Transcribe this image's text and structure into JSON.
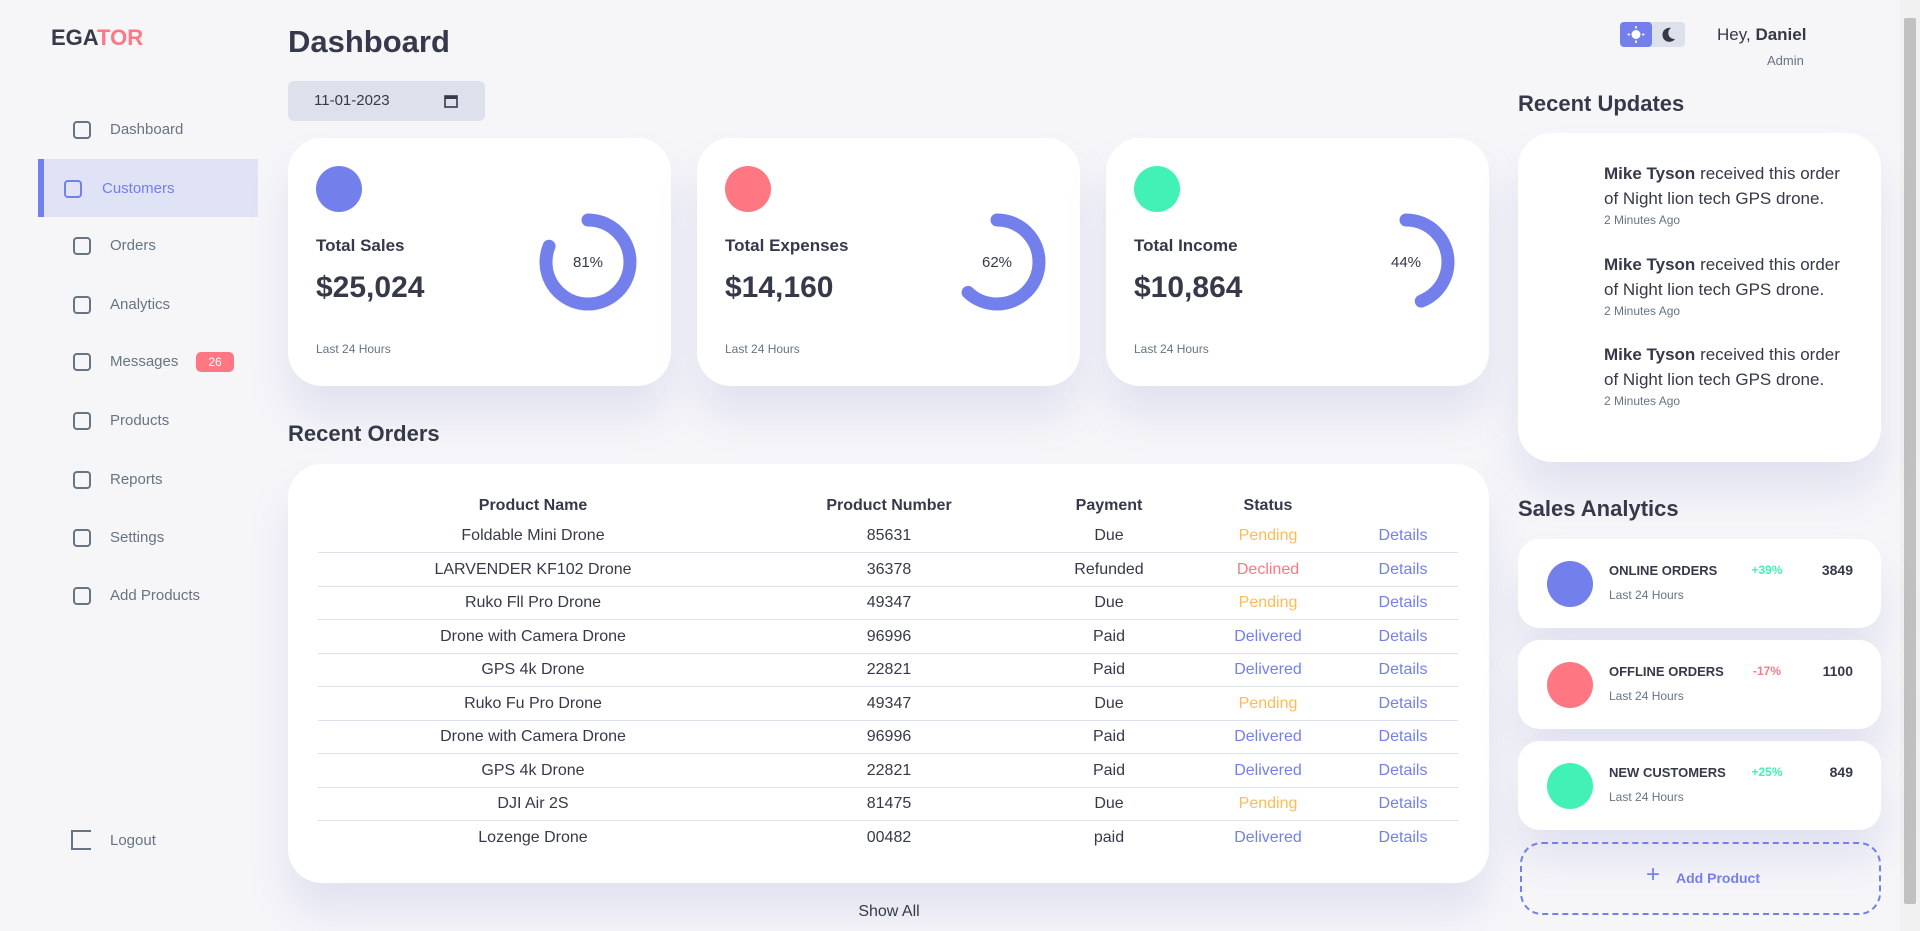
{
  "brand": {
    "part1": "EGA",
    "part2": "TOR"
  },
  "sidebar": {
    "active_item": 1,
    "menu": [
      {
        "label": "Dashboard"
      },
      {
        "label": "Customers"
      },
      {
        "label": "Orders"
      },
      {
        "label": "Analytics"
      },
      {
        "label": "Messages",
        "badge": "26"
      },
      {
        "label": "Products"
      },
      {
        "label": "Reports"
      },
      {
        "label": "Settings"
      },
      {
        "label": "Add Products"
      }
    ],
    "logout": "Logout"
  },
  "header": {
    "title": "Dashboard",
    "date": "11-01-2023",
    "greeting": "Hey,",
    "user": "Daniel",
    "role": "Admin"
  },
  "cards": [
    {
      "title": "Total Sales",
      "value": "$25,024",
      "note": "Last 24 Hours",
      "progress": {
        "value": 81,
        "label": "81%"
      },
      "icon_color": "#7380ec"
    },
    {
      "title": "Total Expenses",
      "value": "$14,160",
      "note": "Last 24 Hours",
      "progress": {
        "value": 62,
        "label": "62%"
      },
      "icon_color": "#ff7782"
    },
    {
      "title": "Total Income",
      "value": "$10,864",
      "note": "Last 24 Hours",
      "progress": {
        "value": 44,
        "label": "44%"
      },
      "icon_color": "#41f1b6"
    }
  ],
  "orders": {
    "title": "Recent Orders",
    "headers": [
      "Product Name",
      "Product Number",
      "Payment",
      "Status"
    ],
    "rows": [
      [
        "Foldable Mini Drone",
        "85631",
        "Due",
        "Pending",
        "Details"
      ],
      [
        "LARVENDER KF102 Drone",
        "36378",
        "Refunded",
        "Declined",
        "Details"
      ],
      [
        "Ruko Fll Pro Drone",
        "49347",
        "Due",
        "Pending",
        "Details"
      ],
      [
        "Drone with Camera Drone",
        "96996",
        "Paid",
        "Delivered",
        "Details"
      ],
      [
        "GPS 4k Drone",
        "22821",
        "Paid",
        "Delivered",
        "Details"
      ],
      [
        "Ruko Fu Pro Drone",
        "49347",
        "Due",
        "Pending",
        "Details"
      ],
      [
        "Drone with Camera Drone",
        "96996",
        "Paid",
        "Delivered",
        "Details"
      ],
      [
        "GPS 4k Drone",
        "22821",
        "Paid",
        "Delivered",
        "Details"
      ],
      [
        "DJI Air 2S",
        "81475",
        "Due",
        "Pending",
        "Details"
      ],
      [
        "Lozenge Drone",
        "00482",
        "paid",
        "Delivered",
        "Details"
      ]
    ],
    "status_colors": {
      "Pending": "#ffbb55",
      "Declined": "#ff7782",
      "Delivered": "#7380ec"
    },
    "show_all": "Show All"
  },
  "updates": {
    "title": "Recent Updates",
    "items": [
      {
        "name": "Mike Tyson",
        "text": "received this order of Night lion tech GPS drone.",
        "time": "2 Minutes Ago"
      },
      {
        "name": "Mike Tyson",
        "text": "received this order of Night lion tech GPS drone.",
        "time": "2 Minutes Ago"
      },
      {
        "name": "Mike Tyson",
        "text": "received this order of Night lion tech GPS drone.",
        "time": "2 Minutes Ago"
      }
    ]
  },
  "analytics": {
    "title": "Sales Analytics",
    "items": [
      {
        "title": "ONLINE ORDERS",
        "note": "Last 24 Hours",
        "change": "+39%",
        "count": "3849",
        "color": "#7380ec",
        "change_color": "#41f1b6"
      },
      {
        "title": "OFFLINE ORDERS",
        "note": "Last 24 Hours",
        "change": "-17%",
        "count": "1100",
        "color": "#ff7782",
        "change_color": "#ff7782"
      },
      {
        "title": "NEW CUSTOMERS",
        "note": "Last 24 Hours",
        "change": "+25%",
        "count": "849",
        "color": "#41f1b6",
        "change_color": "#41f1b6"
      }
    ],
    "add": "Add Product"
  }
}
